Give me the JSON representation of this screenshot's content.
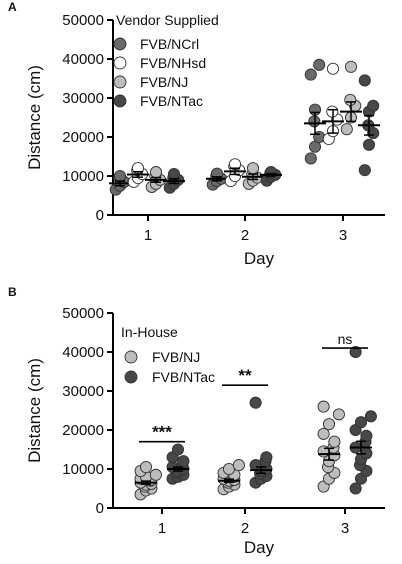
{
  "colors": {
    "ncrl": "#6a6a6a",
    "nhsd": "#ffffff",
    "nj": "#bdbdbd",
    "ntac": "#474747",
    "edge": "#333333",
    "axis": "#000000"
  },
  "chart_data": [
    {
      "panel_label": "A",
      "type": "scatter",
      "xlabel": "Day",
      "ylabel": "Distance (cm)",
      "categories": [
        "1",
        "2",
        "3"
      ],
      "ylim": [
        0,
        50000
      ],
      "yticks": [
        "0",
        "10000",
        "20000",
        "30000",
        "40000",
        "50000"
      ],
      "legend_title": "Vendor Supplied",
      "legend_placement": "top-left",
      "series": [
        {
          "name": "FVB/NCrl",
          "color_key": "ncrl",
          "points": [
            [
              1,
              6500
            ],
            [
              1,
              7500
            ],
            [
              1,
              8500
            ],
            [
              1,
              9500
            ],
            [
              1,
              10000
            ],
            [
              2,
              7800
            ],
            [
              2,
              8700
            ],
            [
              2,
              9300
            ],
            [
              2,
              10000
            ],
            [
              2,
              10600
            ],
            [
              3,
              14500
            ],
            [
              3,
              17500
            ],
            [
              3,
              20000
            ],
            [
              3,
              24000
            ],
            [
              3,
              27000
            ],
            [
              3,
              38500
            ],
            [
              3,
              36000
            ]
          ],
          "mean": [
            8100,
            9300,
            23500
          ],
          "sem": [
            600,
            500,
            2800
          ]
        },
        {
          "name": "FVB/NHsd",
          "color_key": "nhsd",
          "points": [
            [
              1,
              8500
            ],
            [
              1,
              9500
            ],
            [
              1,
              10500
            ],
            [
              1,
              11500
            ],
            [
              1,
              12000
            ],
            [
              2,
              8700
            ],
            [
              2,
              10000
            ],
            [
              2,
              11500
            ],
            [
              2,
              12500
            ],
            [
              2,
              13000
            ],
            [
              3,
              19500
            ],
            [
              3,
              21500
            ],
            [
              3,
              24500
            ],
            [
              3,
              26500
            ],
            [
              3,
              37500
            ]
          ],
          "mean": [
            10400,
            11200,
            24000
          ],
          "sem": [
            700,
            800,
            3000
          ]
        },
        {
          "name": "FVB/NJ",
          "color_key": "nj",
          "points": [
            [
              1,
              7200
            ],
            [
              1,
              8000
            ],
            [
              1,
              9000
            ],
            [
              1,
              10000
            ],
            [
              1,
              11000
            ],
            [
              2,
              8000
            ],
            [
              2,
              8800
            ],
            [
              2,
              9600
            ],
            [
              2,
              10500
            ],
            [
              2,
              12000
            ],
            [
              3,
              22000
            ],
            [
              3,
              25000
            ],
            [
              3,
              28000
            ],
            [
              3,
              29500
            ],
            [
              3,
              38000
            ]
          ],
          "mean": [
            9000,
            9800,
            26500
          ],
          "sem": [
            600,
            700,
            2500
          ]
        },
        {
          "name": "FVB/NTac",
          "color_key": "ntac",
          "points": [
            [
              1,
              7000
            ],
            [
              1,
              8000
            ],
            [
              1,
              9000
            ],
            [
              1,
              9500
            ],
            [
              1,
              10500
            ],
            [
              2,
              8800
            ],
            [
              2,
              9800
            ],
            [
              2,
              10300
            ],
            [
              2,
              10700
            ],
            [
              2,
              11000
            ],
            [
              3,
              11500
            ],
            [
              3,
              18000
            ],
            [
              3,
              21000
            ],
            [
              3,
              23000
            ],
            [
              3,
              26500
            ],
            [
              3,
              28000
            ],
            [
              3,
              34500
            ]
          ],
          "mean": [
            8700,
            10300,
            23000
          ],
          "sem": [
            600,
            300,
            2500
          ]
        }
      ]
    },
    {
      "panel_label": "B",
      "type": "scatter",
      "xlabel": "Day",
      "ylabel": "Distance (cm)",
      "categories": [
        "1",
        "2",
        "3"
      ],
      "ylim": [
        0,
        50000
      ],
      "yticks": [
        "0",
        "10000",
        "20000",
        "30000",
        "40000",
        "50000"
      ],
      "legend_title": "In-House",
      "legend_placement": "top-left",
      "significance": [
        "***",
        "**",
        "ns"
      ],
      "series": [
        {
          "name": "FVB/NJ",
          "color_key": "nj",
          "points": [
            [
              1,
              3500
            ],
            [
              1,
              4500
            ],
            [
              1,
              5000
            ],
            [
              1,
              5500
            ],
            [
              1,
              6000
            ],
            [
              1,
              6200
            ],
            [
              1,
              6500
            ],
            [
              1,
              7000
            ],
            [
              1,
              7200
            ],
            [
              1,
              7500
            ],
            [
              1,
              8000
            ],
            [
              1,
              8500
            ],
            [
              1,
              9500
            ],
            [
              1,
              10500
            ],
            [
              2,
              4800
            ],
            [
              2,
              5500
            ],
            [
              2,
              6000
            ],
            [
              2,
              6500
            ],
            [
              2,
              7000
            ],
            [
              2,
              7200
            ],
            [
              2,
              7500
            ],
            [
              2,
              8000
            ],
            [
              2,
              8500
            ],
            [
              2,
              9000
            ],
            [
              2,
              10000
            ],
            [
              2,
              11000
            ],
            [
              3,
              5500
            ],
            [
              3,
              7500
            ],
            [
              3,
              9000
            ],
            [
              3,
              10500
            ],
            [
              3,
              12000
            ],
            [
              3,
              13500
            ],
            [
              3,
              14500
            ],
            [
              3,
              15500
            ],
            [
              3,
              17000
            ],
            [
              3,
              19000
            ],
            [
              3,
              21500
            ],
            [
              3,
              24000
            ],
            [
              3,
              26000
            ]
          ],
          "mean": [
            6500,
            7000,
            13800
          ],
          "sem": [
            400,
            400,
            1500
          ]
        },
        {
          "name": "FVB/NTac",
          "color_key": "ntac",
          "points": [
            [
              1,
              7500
            ],
            [
              1,
              8000
            ],
            [
              1,
              8500
            ],
            [
              1,
              9000
            ],
            [
              1,
              9500
            ],
            [
              1,
              10000
            ],
            [
              1,
              10500
            ],
            [
              1,
              11000
            ],
            [
              1,
              12000
            ],
            [
              1,
              13000
            ],
            [
              1,
              15000
            ],
            [
              2,
              6500
            ],
            [
              2,
              7500
            ],
            [
              2,
              8200
            ],
            [
              2,
              8800
            ],
            [
              2,
              9500
            ],
            [
              2,
              10000
            ],
            [
              2,
              11000
            ],
            [
              2,
              12000
            ],
            [
              2,
              13000
            ],
            [
              2,
              27000
            ],
            [
              3,
              5000
            ],
            [
              3,
              7500
            ],
            [
              3,
              9500
            ],
            [
              3,
              11000
            ],
            [
              3,
              12500
            ],
            [
              3,
              14000
            ],
            [
              3,
              15500
            ],
            [
              3,
              17000
            ],
            [
              3,
              18500
            ],
            [
              3,
              20000
            ],
            [
              3,
              22000
            ],
            [
              3,
              23500
            ],
            [
              3,
              40000
            ]
          ],
          "mean": [
            10000,
            9700,
            15500
          ],
          "sem": [
            500,
            800,
            1600
          ]
        }
      ]
    }
  ]
}
